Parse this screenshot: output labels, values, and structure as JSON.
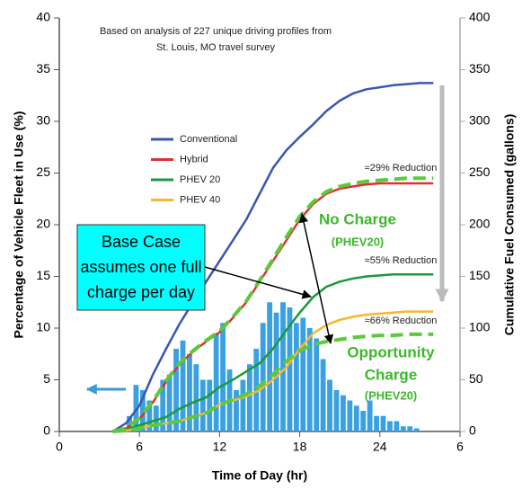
{
  "chart_data": {
    "type": "histogram-line",
    "xlabel": "Time of Day (hr)",
    "ylabel": "Percentage of Vehicle Fleet in Use (%)",
    "y2label": "Cumulative Fuel Consumed (gallons)",
    "xlim": [
      0,
      30
    ],
    "xticks": [
      0,
      6,
      12,
      18,
      24,
      {
        "value": 30,
        "label": "6"
      }
    ],
    "ylim": [
      0,
      40
    ],
    "yticks": [
      0,
      5,
      10,
      15,
      20,
      25,
      30,
      35,
      40
    ],
    "y2lim": [
      0,
      400
    ],
    "y2ticks": [
      0,
      50,
      100,
      150,
      200,
      250,
      300,
      350,
      400
    ],
    "histogram": {
      "color": "#3aa0e0",
      "bins": [
        4.5,
        5,
        5.5,
        6,
        6.5,
        7,
        7.5,
        8,
        8.5,
        9,
        9.5,
        10,
        10.5,
        11,
        11.5,
        12,
        12.5,
        13,
        13.5,
        14,
        14.5,
        15,
        15.5,
        16,
        16.5,
        17,
        17.5,
        18,
        18.5,
        19,
        19.5,
        20,
        20.5,
        21,
        21.5,
        22,
        22.5,
        23,
        23.5,
        24,
        24.5,
        25,
        25.5,
        26,
        26.5,
        27
      ],
      "counts": [
        0.3,
        1.5,
        4.5,
        4,
        3,
        2.5,
        5,
        5.5,
        8,
        8.8,
        7.5,
        6.5,
        5,
        5,
        9.5,
        10.5,
        6,
        4,
        5,
        6.5,
        8,
        10.5,
        12.5,
        11.5,
        12.5,
        12,
        10.5,
        11,
        10,
        9,
        7,
        5,
        4,
        3.5,
        3,
        2.5,
        2,
        3,
        1.5,
        1.5,
        1,
        1,
        0.5,
        0.5,
        0.3
      ]
    },
    "x": [
      4,
      5,
      6,
      7,
      8,
      9,
      10,
      11,
      12,
      13,
      14,
      15,
      16,
      17,
      18,
      19,
      20,
      21,
      22,
      23,
      24,
      25,
      26,
      27,
      28
    ],
    "series": [
      {
        "name": "Conventional",
        "color": "#3a57b0",
        "axis": "y2",
        "values": [
          0,
          8,
          25,
          55,
          80,
          104,
          125,
          145,
          165,
          185,
          205,
          230,
          255,
          272,
          285,
          297,
          310,
          320,
          327,
          331,
          333,
          335,
          336,
          337,
          337
        ]
      },
      {
        "name": "Hybrid",
        "color": "#e03030",
        "axis": "y2",
        "values": [
          0,
          3,
          12,
          28,
          48,
          65,
          77,
          87,
          96,
          110,
          125,
          145,
          165,
          185,
          205,
          220,
          230,
          235,
          237,
          239,
          240,
          240,
          240,
          240,
          240
        ]
      },
      {
        "name": "PHEV 20",
        "color": "#1a9a3a",
        "axis": "y2",
        "values": [
          0,
          2,
          6,
          10,
          14,
          22,
          28,
          33,
          43,
          50,
          58,
          66,
          80,
          98,
          115,
          130,
          140,
          145,
          148,
          150,
          151,
          152,
          152,
          152,
          152
        ]
      },
      {
        "name": "PHEV 40",
        "color": "#f5b82a",
        "axis": "y2",
        "values": [
          0,
          1,
          3,
          6,
          8,
          10,
          14,
          18,
          26,
          30,
          34,
          40,
          50,
          62,
          80,
          95,
          103,
          108,
          111,
          113,
          114,
          115,
          116,
          116,
          116
        ]
      },
      {
        "color": "#5cc93a",
        "axis": "y2",
        "dashed": true,
        "values": [
          0,
          3,
          13,
          29,
          49,
          66,
          78,
          88,
          97,
          111,
          126,
          146,
          167,
          188,
          208,
          222,
          232,
          237,
          240,
          242,
          243,
          244,
          245,
          245,
          245
        ]
      },
      {
        "color": "#5cc93a",
        "axis": "y2",
        "dashed": true,
        "values": [
          0,
          1,
          3,
          6,
          8,
          10,
          14,
          18,
          26,
          31,
          36,
          44,
          55,
          68,
          78,
          84,
          87,
          89,
          91,
          92,
          93,
          93,
          94,
          94,
          94
        ]
      }
    ],
    "annotations": [
      "Based on analysis of 227 unique driving profiles from",
      "St. Louis, MO travel survey",
      "≈29% Reduction",
      "≈55% Reduction",
      "≈66% Reduction",
      "No Charge",
      "(PHEV20)",
      "Opportunity",
      "Charge",
      "(PHEV20)",
      "Base Case",
      "assumes one full",
      "charge per day"
    ]
  }
}
